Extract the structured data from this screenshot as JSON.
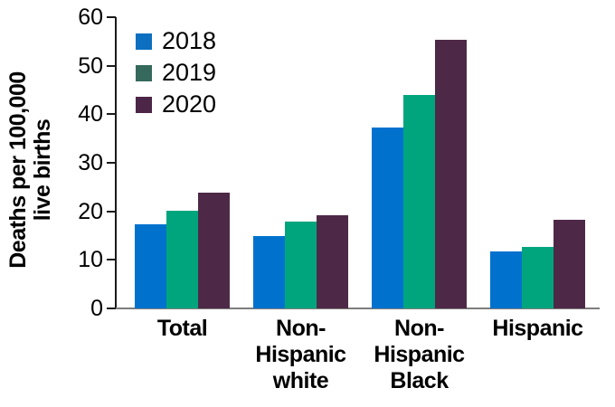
{
  "chart_data": {
    "type": "bar",
    "title": "",
    "ylabel": "Deaths per 100,000 live births",
    "ylabel_line1": "Deaths per 100,000",
    "ylabel_line2": "live births",
    "categories": [
      "Total",
      "Non-\nHispanic\nwhite",
      "Non-\nHispanic\nBlack",
      "Hispanic"
    ],
    "series": [
      {
        "name": "2018",
        "color": "#0072CE",
        "legend_color": "#0C6FC0",
        "values": [
          17.4,
          14.9,
          37.3,
          11.8
        ]
      },
      {
        "name": "2019",
        "color": "#00A57E",
        "legend_color": "#35695C",
        "values": [
          20.1,
          17.9,
          44.0,
          12.6
        ]
      },
      {
        "name": "2020",
        "color": "#4E2947",
        "legend_color": "#4C2646",
        "values": [
          23.8,
          19.1,
          55.3,
          18.2
        ]
      }
    ],
    "y_axis": {
      "min": 0,
      "max": 60,
      "tick_step": 10,
      "ticks": [
        0,
        10,
        20,
        30,
        40,
        50,
        60
      ]
    },
    "legend_position": "top-left",
    "grid": false,
    "axis_color": "#1a1a1a",
    "baseline_color": "#7d7d7d"
  }
}
